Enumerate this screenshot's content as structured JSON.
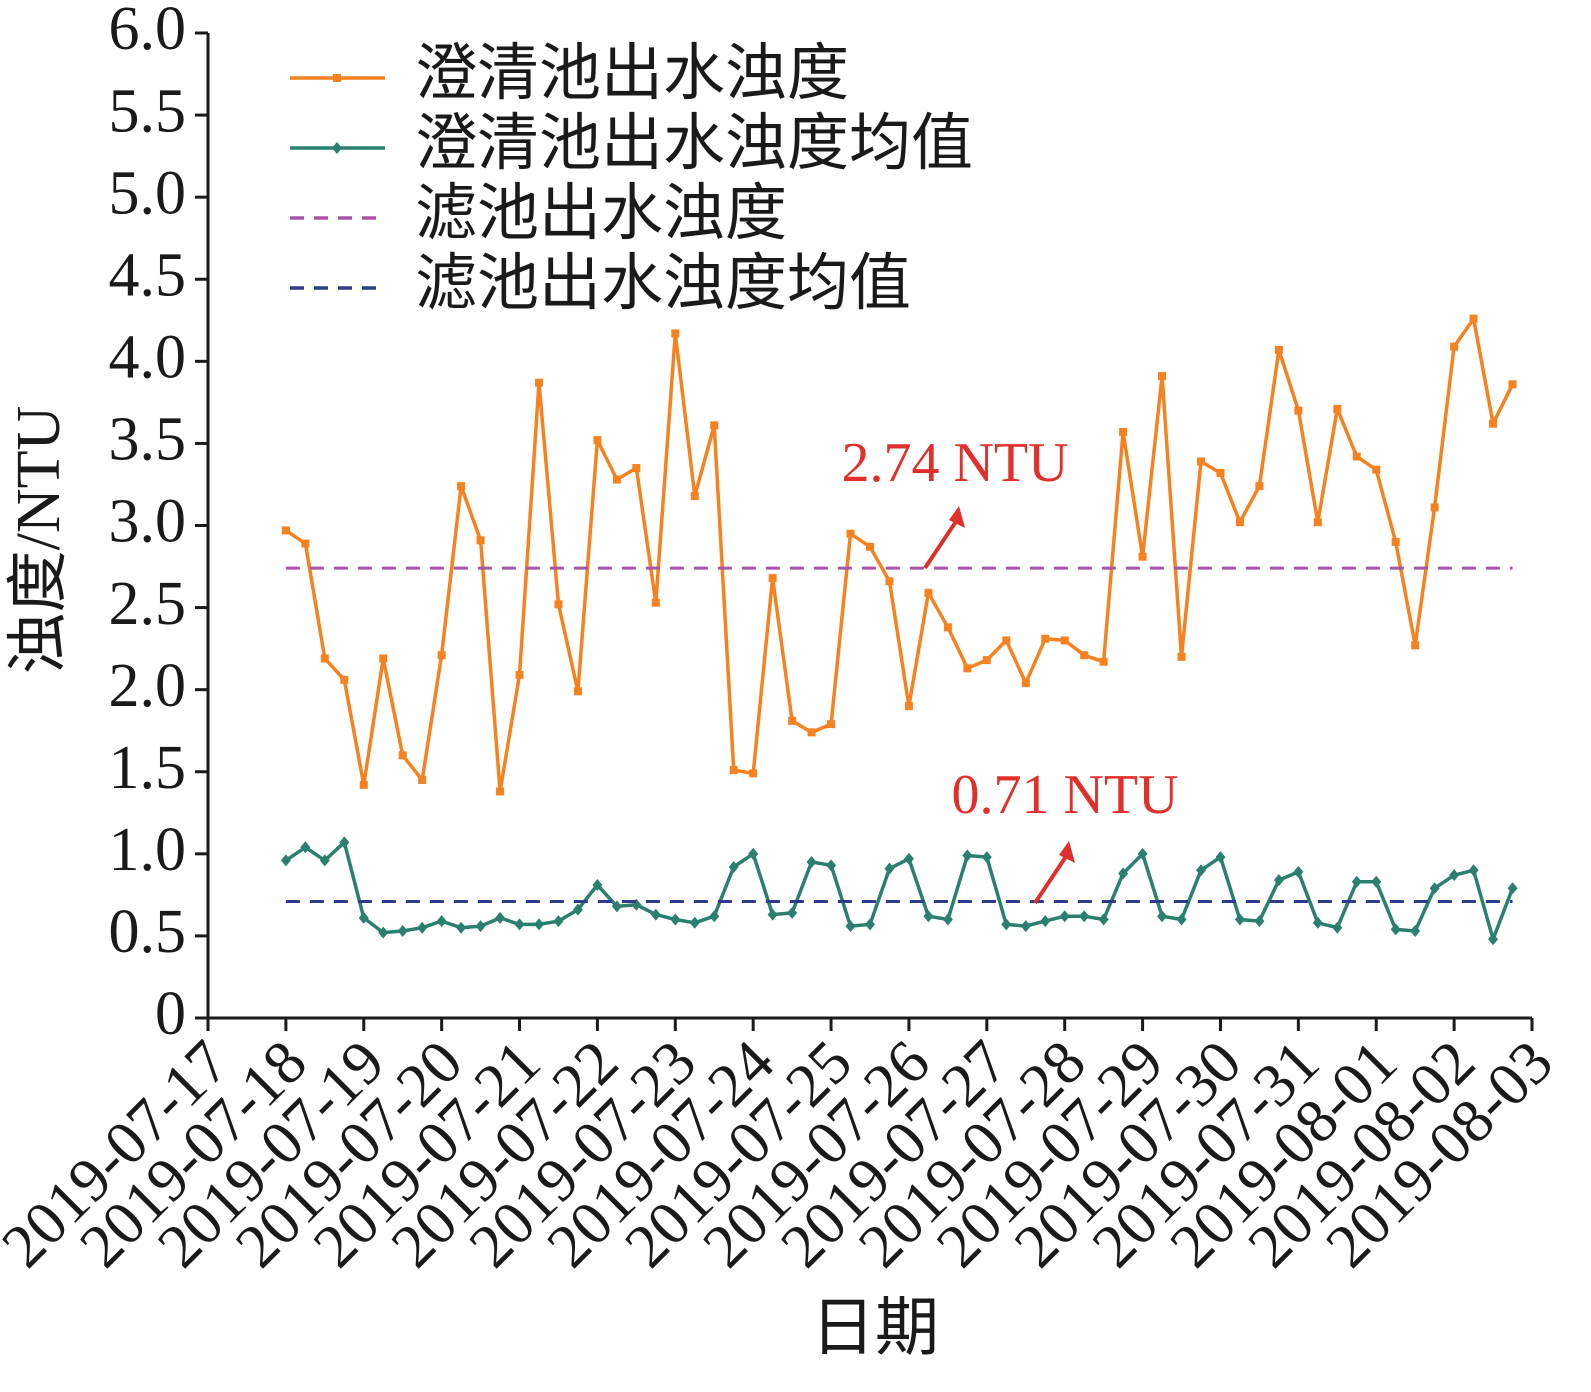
{
  "chart_data": {
    "type": "line",
    "xlabel": "日期",
    "ylabel": "浊度/NTU",
    "categories": [
      "2019-07-17",
      null,
      null,
      null,
      "2019-07-18",
      null,
      null,
      null,
      "2019-07-19",
      null,
      null,
      null,
      "2019-07-20",
      null,
      null,
      null,
      "2019-07-21",
      null,
      null,
      null,
      "2019-07-22",
      null,
      null,
      null,
      "2019-07-23",
      null,
      null,
      null,
      "2019-07-24",
      null,
      null,
      null,
      "2019-07-25",
      null,
      null,
      null,
      "2019-07-26",
      null,
      null,
      null,
      "2019-07-27",
      null,
      null,
      null,
      "2019-07-28",
      null,
      null,
      null,
      "2019-07-29",
      null,
      null,
      null,
      "2019-07-30",
      null,
      null,
      null,
      "2019-07-31",
      null,
      null,
      null,
      "2019-08-01",
      null,
      null,
      null,
      "2019-08-02",
      null,
      null,
      null,
      "2019-08-03"
    ],
    "ylim": [
      0,
      6
    ],
    "yticks": [
      0,
      0.5,
      {
        "value": 1,
        "label": "1.0"
      },
      1.5,
      {
        "value": 2,
        "label": "2.0"
      },
      2.5,
      {
        "value": 3,
        "label": "3.0"
      },
      3.5,
      {
        "value": 4,
        "label": "4.0"
      },
      4.5,
      {
        "value": 5,
        "label": "5.0"
      },
      5.5,
      {
        "value": 6,
        "label": "6.0"
      }
    ],
    "series": [
      {
        "name": "澄清池出水浊度",
        "color": "#f5821f",
        "marker": "square",
        "values": [
          null,
          null,
          null,
          null,
          2.97,
          2.89,
          2.19,
          2.06,
          1.42,
          2.19,
          1.6,
          1.45,
          2.21,
          3.24,
          2.91,
          1.38,
          2.09,
          3.87,
          2.52,
          1.99,
          3.52,
          3.28,
          3.35,
          2.53,
          4.17,
          3.18,
          3.61,
          1.51,
          1.49,
          2.68,
          1.81,
          1.74,
          1.79,
          2.95,
          2.87,
          2.66,
          1.9,
          2.59,
          2.38,
          2.13,
          2.18,
          2.3,
          2.04,
          2.31,
          2.3,
          2.21,
          2.17,
          3.57,
          2.81,
          3.91,
          2.2,
          3.39,
          3.32,
          3.02,
          3.24,
          4.07,
          3.7,
          3.02,
          3.71,
          3.42,
          3.34,
          2.9,
          2.27,
          3.11,
          4.09,
          4.26,
          3.62,
          3.86,
          null
        ]
      },
      {
        "name": "澄清池出水浊度均值",
        "color": "#2a7f6f",
        "marker": "diamond",
        "values": [
          null,
          null,
          null,
          null,
          0.96,
          1.04,
          0.96,
          1.07,
          0.61,
          0.52,
          0.53,
          0.55,
          0.59,
          0.55,
          0.56,
          0.61,
          0.57,
          0.57,
          0.59,
          0.66,
          0.81,
          0.68,
          0.69,
          0.63,
          0.6,
          0.58,
          0.62,
          0.92,
          1.0,
          0.63,
          0.64,
          0.95,
          0.93,
          0.56,
          0.57,
          0.91,
          0.97,
          0.62,
          0.6,
          0.99,
          0.98,
          0.57,
          0.56,
          0.59,
          0.62,
          0.62,
          0.6,
          0.88,
          1.0,
          0.62,
          0.6,
          0.9,
          0.98,
          0.6,
          0.59,
          0.84,
          0.89,
          0.58,
          0.55,
          0.83,
          0.83,
          0.54,
          0.53,
          0.79,
          0.87,
          0.9,
          0.48,
          0.79,
          null
        ]
      },
      {
        "name": "滤池出水浊度",
        "color": "#a855a8",
        "dash": true,
        "value": 2.74
      },
      {
        "name": "滤池出水浊度均值",
        "color": "#2e3a8c",
        "dash": true,
        "value": 0.71
      }
    ],
    "annotations": [
      {
        "text": "2.74 NTU"
      },
      {
        "text": "0.71 NTU"
      }
    ]
  }
}
